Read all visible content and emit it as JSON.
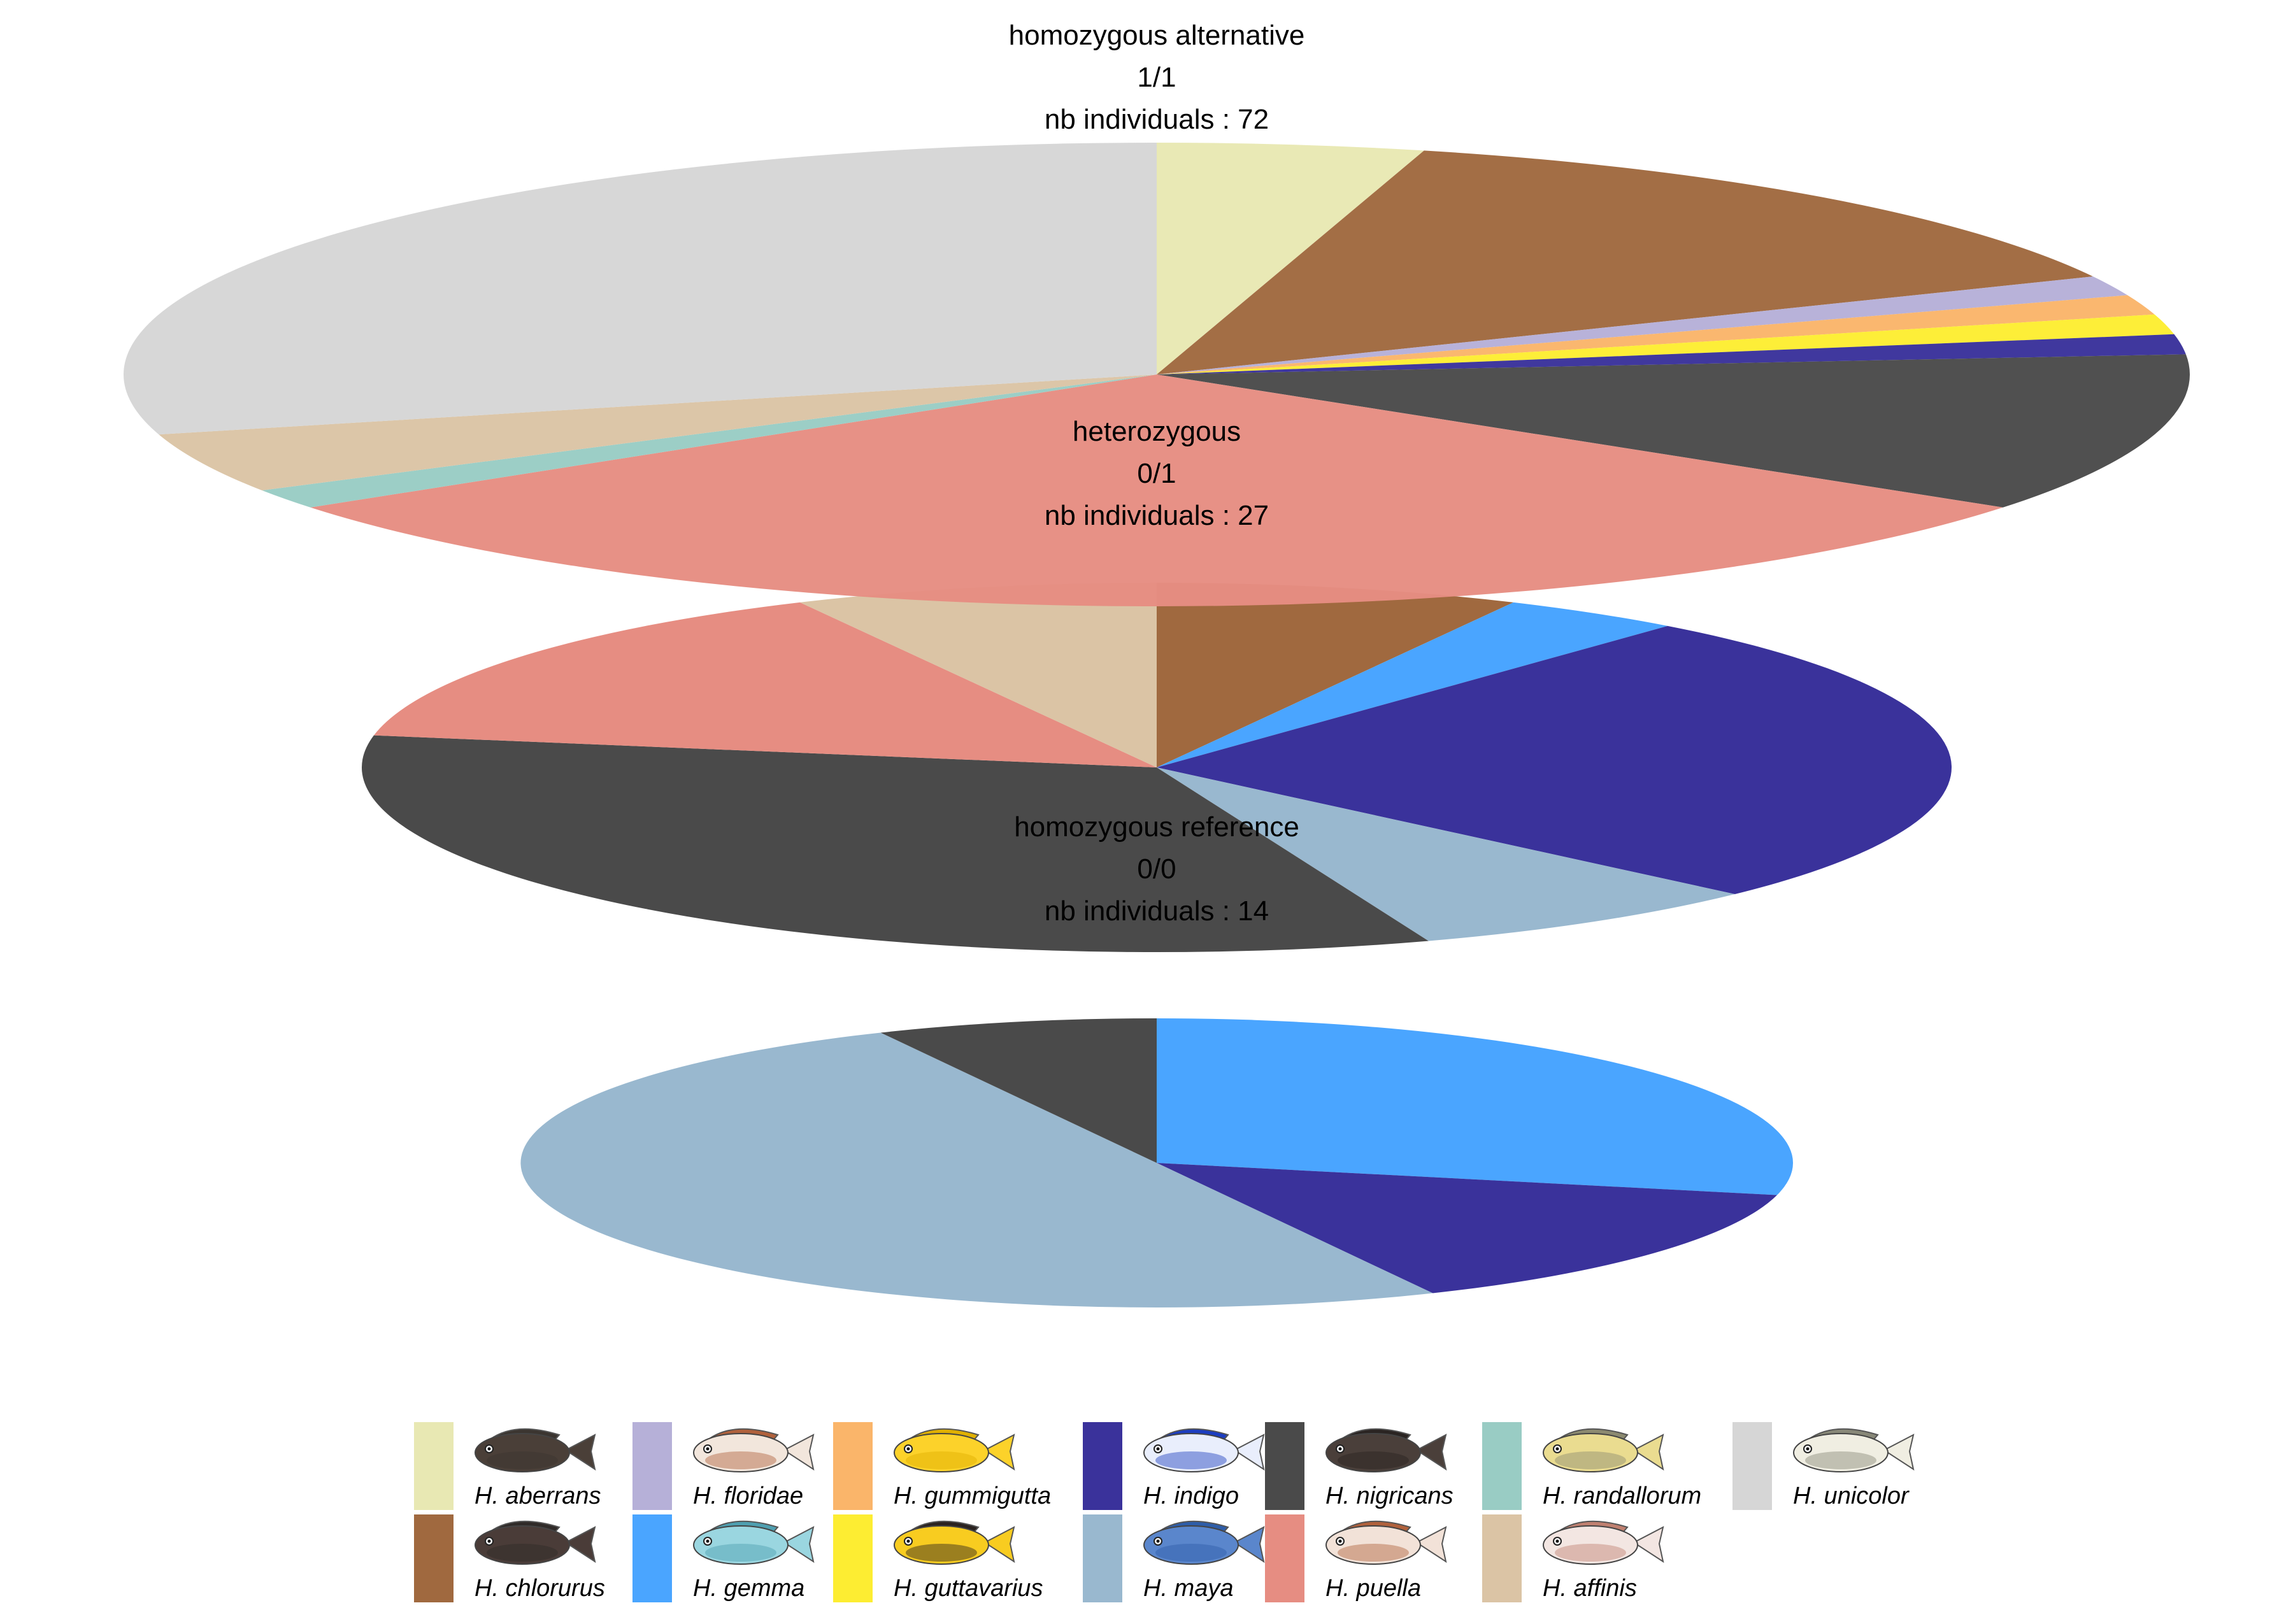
{
  "chart_data": {
    "type": "pie",
    "species": [
      {
        "name": "H. aberrans",
        "color": "#E8E8B3",
        "icon": "fish-aberrans-icon"
      },
      {
        "name": "H. chlorurus",
        "color": "#A0693F",
        "icon": "fish-chlorurus-icon"
      },
      {
        "name": "H. floridae",
        "color": "#B6B0D8",
        "icon": "fish-floridae-icon"
      },
      {
        "name": "H. gemma",
        "color": "#4AA5FF",
        "icon": "fish-gemma-icon"
      },
      {
        "name": "H. gummigutta",
        "color": "#FAB56A",
        "icon": "fish-gummigutta-icon"
      },
      {
        "name": "H. guttavarius",
        "color": "#FDED32",
        "icon": "fish-guttavarius-icon"
      },
      {
        "name": "H. indigo",
        "color": "#3A329B",
        "icon": "fish-indigo-icon"
      },
      {
        "name": "H. maya",
        "color": "#99B8CF",
        "icon": "fish-maya-icon"
      },
      {
        "name": "H. nigricans",
        "color": "#4A4A4A",
        "icon": "fish-nigricans-icon"
      },
      {
        "name": "H. puella",
        "color": "#E68D82",
        "icon": "fish-puella-icon"
      },
      {
        "name": "H. randallorum",
        "color": "#99CCC4",
        "icon": "fish-randallorum-icon"
      },
      {
        "name": "H. affinis",
        "color": "#DBC4A5",
        "icon": "fish-affinis-icon"
      },
      {
        "name": "H. unicolor",
        "color": "#D6D6D6",
        "icon": "fish-unicolor-icon"
      }
    ],
    "pies": [
      {
        "title_lines": [
          "homozygous alternative",
          "1/1",
          "nb individuals : 72"
        ],
        "slices": [
          {
            "species": "H. aberrans",
            "value": 3
          },
          {
            "species": "H. chlorurus",
            "value": 10
          },
          {
            "species": "H. floridae",
            "value": 1
          },
          {
            "species": "H. gummigutta",
            "value": 1
          },
          {
            "species": "H. guttavarius",
            "value": 1
          },
          {
            "species": "H. indigo",
            "value": 1
          },
          {
            "species": "H. nigricans",
            "value": 8
          },
          {
            "species": "H. puella",
            "value": 22
          },
          {
            "species": "H. randallorum",
            "value": 1
          },
          {
            "species": "H. affinis",
            "value": 3
          },
          {
            "species": "H. unicolor",
            "value": 21
          }
        ]
      },
      {
        "title_lines": [
          "heterozygous",
          "0/1",
          "nb individuals : 27"
        ],
        "slices": [
          {
            "species": "H. chlorurus",
            "value": 2
          },
          {
            "species": "H. gemma",
            "value": 1
          },
          {
            "species": "H. indigo",
            "value": 7
          },
          {
            "species": "H. maya",
            "value": 2
          },
          {
            "species": "H. nigricans",
            "value": 9
          },
          {
            "species": "H. puella",
            "value": 4
          },
          {
            "species": "H. affinis",
            "value": 2
          }
        ]
      },
      {
        "title_lines": [
          "homozygous reference",
          "0/0",
          "nb individuals : 14"
        ],
        "slices": [
          {
            "species": "H. gemma",
            "value": 4
          },
          {
            "species": "H. indigo",
            "value": 2
          },
          {
            "species": "H. maya",
            "value": 7
          },
          {
            "species": "H. nigricans",
            "value": 1
          }
        ]
      }
    ]
  }
}
